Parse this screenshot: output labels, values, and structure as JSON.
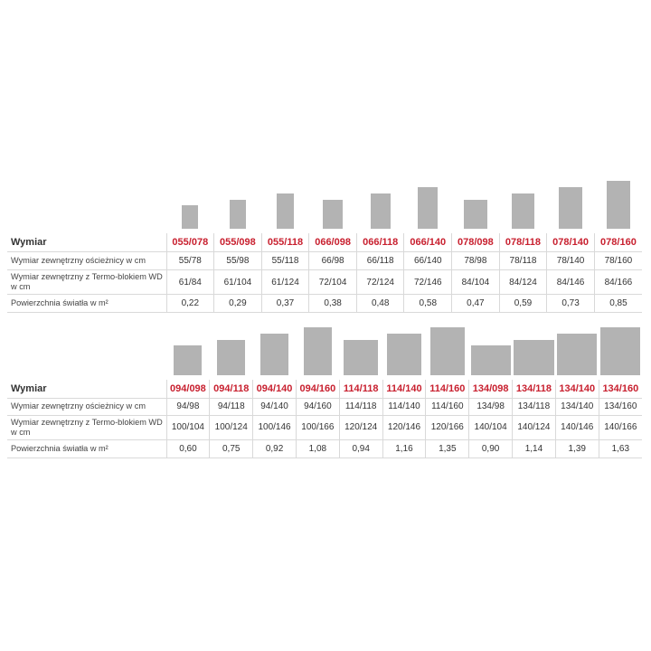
{
  "table1": {
    "title": "Wymiar",
    "columns": [
      {
        "code": "055/078",
        "outer": "55/78",
        "thermo": "61/84",
        "area": "0,22"
      },
      {
        "code": "055/098",
        "outer": "55/98",
        "thermo": "61/104",
        "area": "0,29"
      },
      {
        "code": "055/118",
        "outer": "55/118",
        "thermo": "61/124",
        "area": "0,37"
      },
      {
        "code": "066/098",
        "outer": "66/98",
        "thermo": "72/104",
        "area": "0,38"
      },
      {
        "code": "066/118",
        "outer": "66/118",
        "thermo": "72/124",
        "area": "0,48"
      },
      {
        "code": "066/140",
        "outer": "66/140",
        "thermo": "72/146",
        "area": "0,58"
      },
      {
        "code": "078/098",
        "outer": "78/98",
        "thermo": "84/104",
        "area": "0,47"
      },
      {
        "code": "078/118",
        "outer": "78/118",
        "thermo": "84/124",
        "area": "0,59"
      },
      {
        "code": "078/140",
        "outer": "78/140",
        "thermo": "84/146",
        "area": "0,73"
      },
      {
        "code": "078/160",
        "outer": "78/160",
        "thermo": "84/166",
        "area": "0,85"
      }
    ],
    "row_labels": {
      "outer": "Wymiar zewnętrzny ościeżnicy w cm",
      "thermo": "Wymiar zewnętrzny z Termo-blokiem WD w cm",
      "area": "Powierzchnia światła w m²"
    }
  },
  "table2": {
    "title": "Wymiar",
    "columns": [
      {
        "code": "094/098",
        "outer": "94/98",
        "thermo": "100/104",
        "area": "0,60"
      },
      {
        "code": "094/118",
        "outer": "94/118",
        "thermo": "100/124",
        "area": "0,75"
      },
      {
        "code": "094/140",
        "outer": "94/140",
        "thermo": "100/146",
        "area": "0,92"
      },
      {
        "code": "094/160",
        "outer": "94/160",
        "thermo": "100/166",
        "area": "1,08"
      },
      {
        "code": "114/118",
        "outer": "114/118",
        "thermo": "120/124",
        "area": "0,94"
      },
      {
        "code": "114/140",
        "outer": "114/140",
        "thermo": "120/146",
        "area": "1,16"
      },
      {
        "code": "114/160",
        "outer": "114/160",
        "thermo": "120/166",
        "area": "1,35"
      },
      {
        "code": "134/098",
        "outer": "134/98",
        "thermo": "140/104",
        "area": "0,90"
      },
      {
        "code": "134/118",
        "outer": "134/118",
        "thermo": "140/124",
        "area": "1,14"
      },
      {
        "code": "134/140",
        "outer": "134/140",
        "thermo": "140/146",
        "area": "1,39"
      },
      {
        "code": "134/160",
        "outer": "134/160",
        "thermo": "140/166",
        "area": "1,63"
      }
    ],
    "row_labels": {
      "outer": "Wymiar zewnętrzny ościeżnicy w cm",
      "thermo": "Wymiar zewnętrzny z Termo-blokiem WD w cm",
      "area": "Powierzchnia światła w m²"
    }
  },
  "colors": {
    "code_red": "#c8202f",
    "shape_gray": "#b3b3b3",
    "rule": "#d9d9d9"
  }
}
